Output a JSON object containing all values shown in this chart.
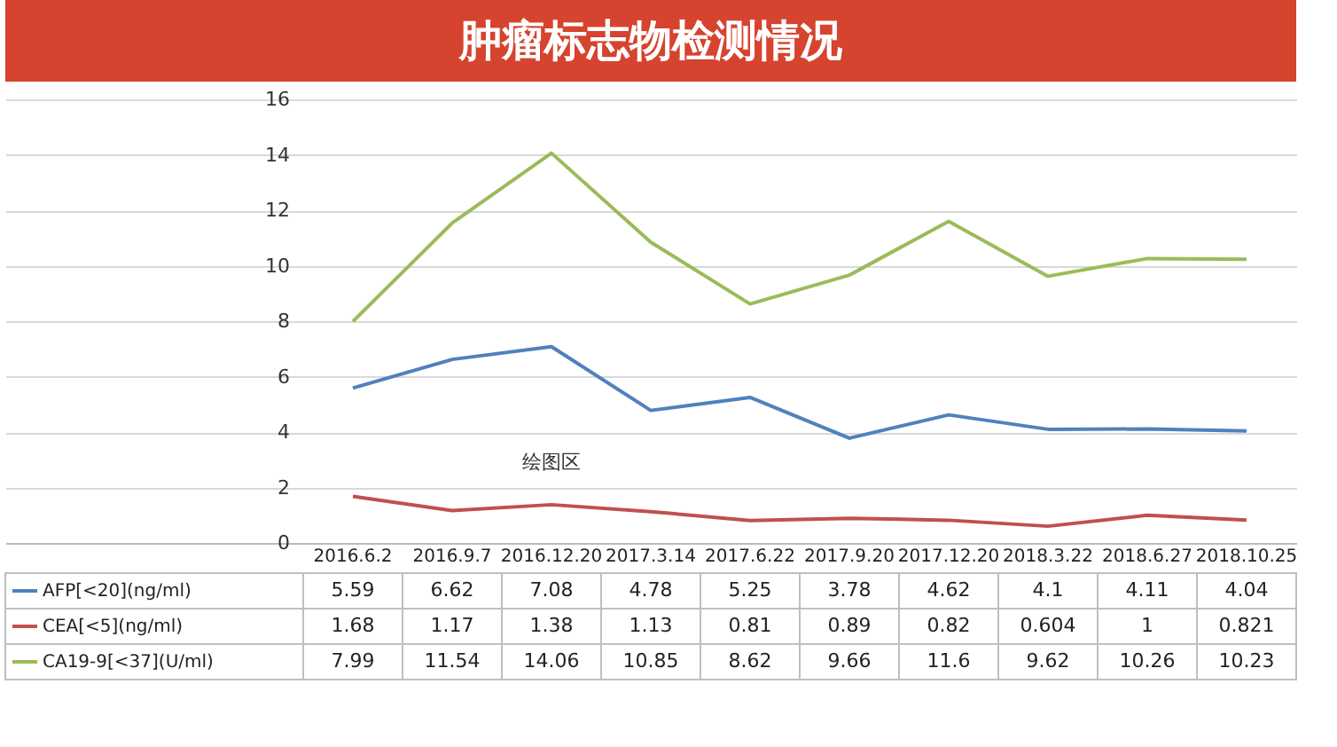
{
  "chart_data": {
    "type": "line",
    "title": "肿瘤标志物检测情况",
    "categories": [
      "2016.6.2",
      "2016.9.7",
      "2016.12.20",
      "2017.3.14",
      "2017.6.22",
      "2017.9.20",
      "2017.12.20",
      "2018.3.22",
      "2018.6.27",
      "2018.10.25"
    ],
    "series": [
      {
        "name": "AFP[<20](ng/ml)",
        "color": "#4f81bd",
        "values": [
          5.59,
          6.62,
          7.08,
          4.78,
          5.25,
          3.78,
          4.62,
          4.1,
          4.11,
          4.04
        ]
      },
      {
        "name": "CEA[<5](ng/ml)",
        "color": "#c0504d",
        "values": [
          1.68,
          1.17,
          1.38,
          1.13,
          0.81,
          0.89,
          0.82,
          0.604,
          1,
          0.821
        ]
      },
      {
        "name": "CA19-9[<37](U/ml)",
        "color": "#9bbb59",
        "values": [
          7.99,
          11.54,
          14.06,
          10.85,
          8.62,
          9.66,
          11.6,
          9.62,
          10.26,
          10.23
        ]
      }
    ],
    "ylim": [
      0,
      16
    ],
    "yticks": [
      0,
      2,
      4,
      6,
      8,
      10,
      12,
      14,
      16
    ],
    "grid": "y",
    "legend": "bottom",
    "data_labels": true,
    "annotations": [
      "绘图区"
    ]
  }
}
